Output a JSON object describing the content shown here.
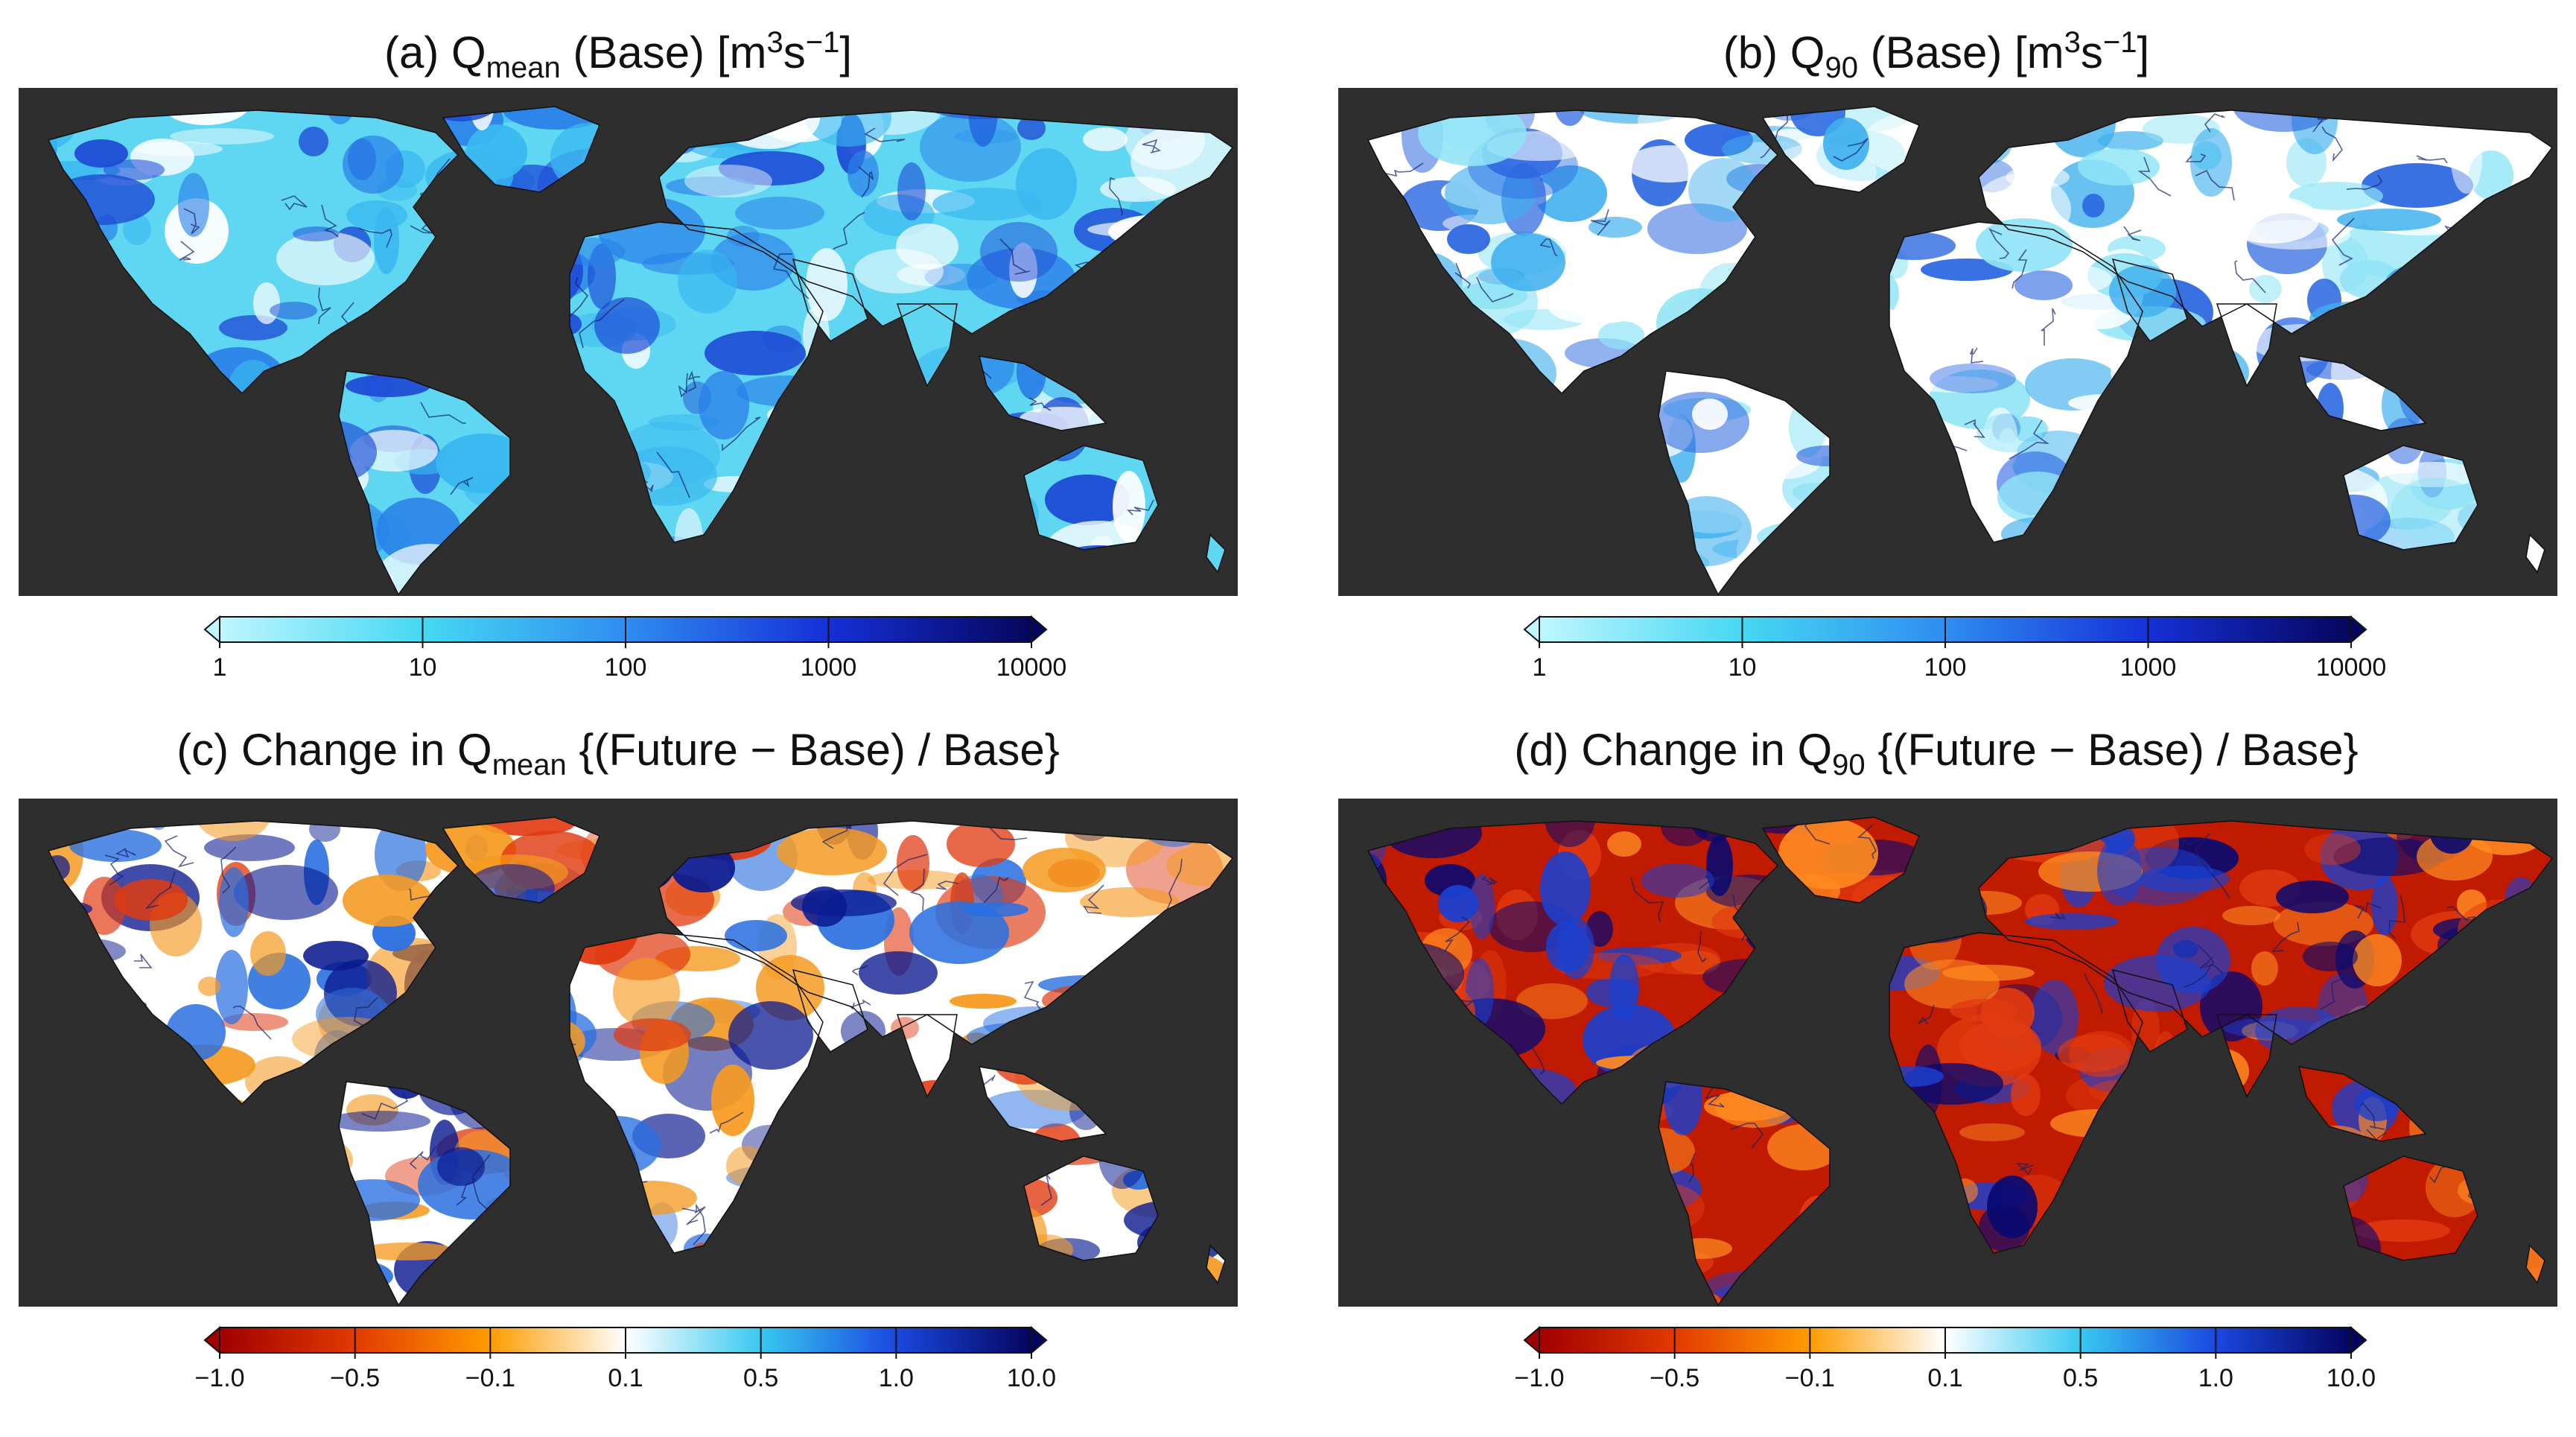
{
  "panels": {
    "a": {
      "title_pre": "(a) Q",
      "title_sub": "mean",
      "title_mid": " (Base) [m",
      "title_sup1": "3",
      "title_mid2": "s",
      "title_sup2": "−1",
      "title_post": "]"
    },
    "b": {
      "title_pre": "(b) Q",
      "title_sub": "90",
      "title_mid": " (Base) [m",
      "title_sup1": "3",
      "title_mid2": "s",
      "title_sup2": "−1",
      "title_post": "]"
    },
    "c": {
      "title_pre": "(c) Change in Q",
      "title_sub": "mean",
      "title_post": " {(Future − Base) / Base}"
    },
    "d": {
      "title_pre": "(d) Change in Q",
      "title_sub": "90",
      "title_post": " {(Future − Base) / Base}"
    }
  },
  "colorbars": {
    "discharge": {
      "ticks": [
        "1",
        "10",
        "100",
        "1000",
        "10000"
      ],
      "colors": [
        "#bff6ff",
        "#45d8f2",
        "#2f8df0",
        "#1530d8",
        "#06065c"
      ],
      "extends": "both"
    },
    "change": {
      "ticks": [
        "−1.0",
        "−0.5",
        "−0.1",
        "0.1",
        "0.5",
        "1.0",
        "10.0"
      ],
      "colors": [
        "#a00000",
        "#e23a00",
        "#ff9c00",
        "#ffffff",
        "#38c8f0",
        "#1a48e0",
        "#050560"
      ],
      "extends": "both"
    }
  },
  "style": {
    "map_background": "#2e2e2e",
    "land_palettes": {
      "a": [
        "#5fd6f2",
        "#39b8f0",
        "#2a80e8",
        "#1d4ad6",
        "#ffffff"
      ],
      "b": [
        "#ffffff",
        "#8fe4f6",
        "#3fb0ee",
        "#2a66e0",
        "#ffffff"
      ],
      "c": [
        "#ffffff",
        "#f59a20",
        "#e03a10",
        "#2a70e0",
        "#0a1a90"
      ],
      "d": [
        "#c01a00",
        "#e23a10",
        "#ff8a20",
        "#1a40d0",
        "#0a0a70"
      ]
    }
  }
}
